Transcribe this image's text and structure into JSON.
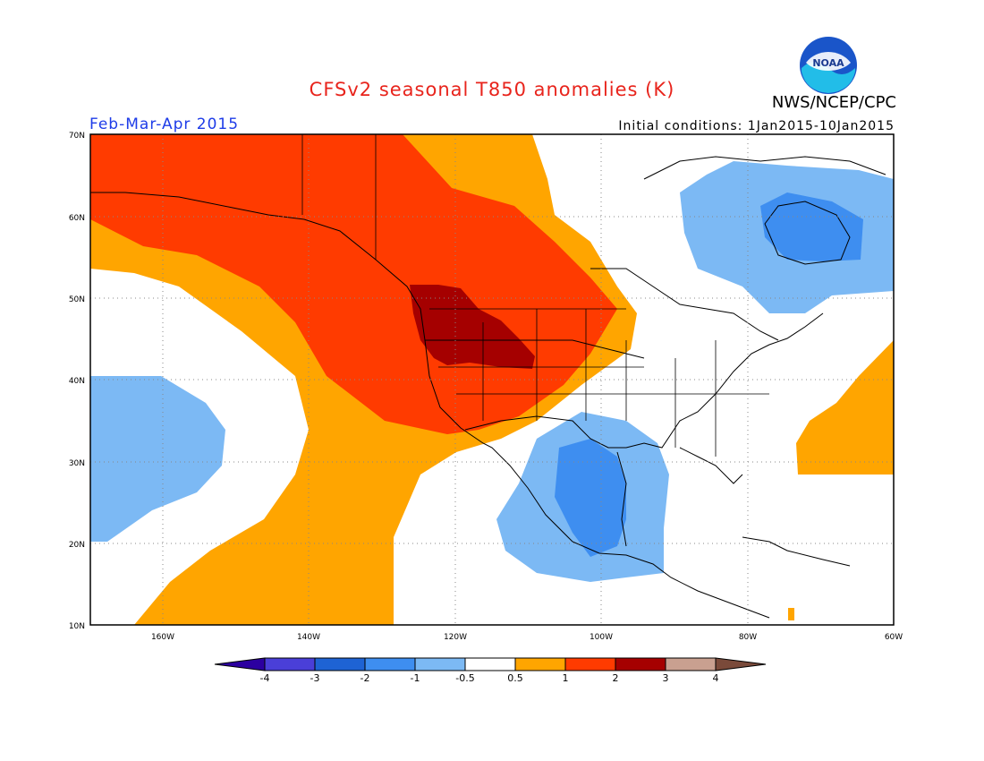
{
  "title": "CFSv2 seasonal T850 anomalies (K)",
  "agency": "NWS/NCEP/CPC",
  "logo_text": "NOAA",
  "season": "Feb-Mar-Apr 2015",
  "initial_conditions": "Initial conditions: 1Jan2015-10Jan2015",
  "lat_labels": [
    "10N",
    "20N",
    "30N",
    "40N",
    "50N",
    "60N",
    "70N"
  ],
  "lon_labels": [
    "160W",
    "140W",
    "120W",
    "100W",
    "80W",
    "60W"
  ],
  "legend": {
    "labels": [
      "-4",
      "-3",
      "-2",
      "-1",
      "-0.5",
      "0.5",
      "1",
      "2",
      "3",
      "4"
    ],
    "colors": [
      "#2c00a0",
      "#4a3fd8",
      "#1e63d4",
      "#3e8ef0",
      "#7cb9f4",
      "#ffffff",
      "#ffa500",
      "#ff3b00",
      "#a50000",
      "#c9a090",
      "#7a4a3a"
    ]
  }
}
